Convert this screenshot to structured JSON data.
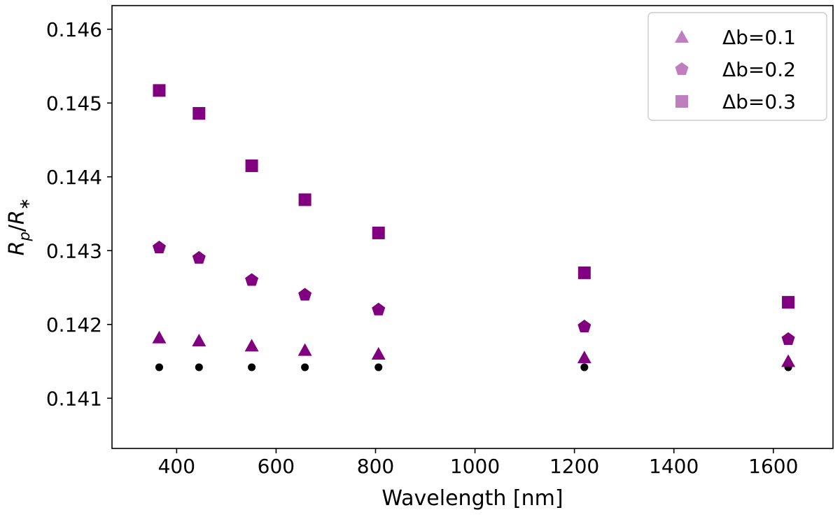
{
  "chart_data": {
    "type": "scatter",
    "xlabel": "Wavelength [nm]",
    "ylabel": "R_p/R_*",
    "xlim": [
      270,
      1720
    ],
    "ylim": [
      0.14032,
      0.14632
    ],
    "xticks": [
      400,
      600,
      800,
      1000,
      1200,
      1400,
      1600
    ],
    "yticks": [
      0.141,
      0.142,
      0.143,
      0.144,
      0.145,
      0.146
    ],
    "x": [
      365,
      445,
      551,
      658,
      806,
      1220,
      1630
    ],
    "legend_position": "top-right",
    "grid": false,
    "series": [
      {
        "name": "Δb=0.1",
        "marker": "triangle",
        "color": "#800080",
        "values": [
          0.14182,
          0.14178,
          0.14171,
          0.14165,
          0.1416,
          0.14155,
          0.1415
        ]
      },
      {
        "name": "Δb=0.2",
        "marker": "pentagon",
        "color": "#800080",
        "values": [
          0.14304,
          0.1429,
          0.1426,
          0.1424,
          0.1422,
          0.14197,
          0.1418
        ]
      },
      {
        "name": "Δb=0.3",
        "marker": "square",
        "color": "#800080",
        "values": [
          0.14517,
          0.14486,
          0.14415,
          0.14369,
          0.14324,
          0.1427,
          0.1423
        ]
      },
      {
        "name": "",
        "marker": "circle",
        "color": "#000000",
        "values": [
          0.14142,
          0.14142,
          0.14142,
          0.14142,
          0.14142,
          0.14142,
          0.14142
        ]
      }
    ]
  }
}
